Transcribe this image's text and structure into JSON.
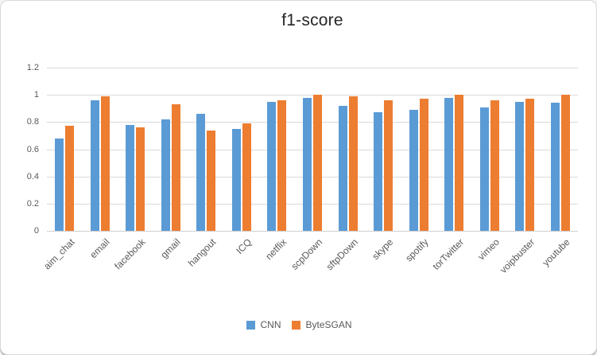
{
  "window": {
    "background": "#ffffff",
    "border_color": "#d9d9d9"
  },
  "chart_data": {
    "type": "bar",
    "title": "f1-score",
    "categories": [
      "aim_chat",
      "email",
      "facebook",
      "gmail",
      "hangout",
      "ICQ",
      "netflix",
      "scpDown",
      "sftpDown",
      "skype",
      "spotify",
      "torTwitter",
      "vimeo",
      "voipbuster",
      "youtube"
    ],
    "series": [
      {
        "name": "CNN",
        "color": "#5B9BD5",
        "values": [
          0.68,
          0.96,
          0.78,
          0.82,
          0.86,
          0.75,
          0.95,
          0.98,
          0.92,
          0.87,
          0.89,
          0.98,
          0.91,
          0.95,
          0.94
        ]
      },
      {
        "name": "ByteSGAN",
        "color": "#ED7D31",
        "values": [
          0.77,
          0.99,
          0.76,
          0.93,
          0.74,
          0.79,
          0.96,
          1.0,
          0.99,
          0.96,
          0.97,
          1.0,
          0.96,
          0.97,
          1.0
        ]
      }
    ],
    "xlabel": "",
    "ylabel": "",
    "ylim": [
      0,
      1.2
    ],
    "yticks": [
      0,
      0.2,
      0.4,
      0.6,
      0.8,
      1,
      1.2
    ],
    "ytick_labels": [
      "0",
      "0.2",
      "0.4",
      "0.6",
      "0.8",
      "1",
      "1.2"
    ],
    "grid": true,
    "legend_position": "bottom",
    "colors": {
      "gridline": "#d9d9d9",
      "axis_line": "#cfcfcf",
      "tick_text": "#595959",
      "title_text": "#262626"
    }
  }
}
